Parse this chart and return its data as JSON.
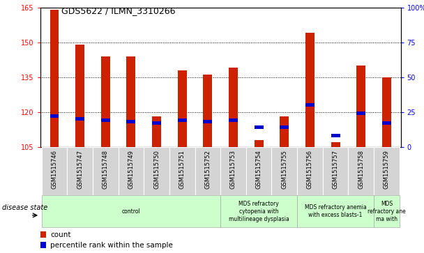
{
  "title": "GDS5622 / ILMN_3310266",
  "samples": [
    "GSM1515746",
    "GSM1515747",
    "GSM1515748",
    "GSM1515749",
    "GSM1515750",
    "GSM1515751",
    "GSM1515752",
    "GSM1515753",
    "GSM1515754",
    "GSM1515755",
    "GSM1515756",
    "GSM1515757",
    "GSM1515758",
    "GSM1515759"
  ],
  "count_values": [
    164,
    149,
    144,
    144,
    118,
    138,
    136,
    139,
    108,
    118,
    154,
    107,
    140,
    135
  ],
  "percentile_values": [
    22,
    20,
    19,
    18,
    17,
    19,
    18,
    19,
    14,
    14,
    30,
    8,
    24,
    17
  ],
  "baseline": 105,
  "ylim_left": [
    105,
    165
  ],
  "ylim_right": [
    0,
    100
  ],
  "yticks_left": [
    105,
    120,
    135,
    150,
    165
  ],
  "yticks_right": [
    0,
    25,
    50,
    75,
    100
  ],
  "bar_color": "#cc2200",
  "blue_color": "#0000cc",
  "bg_color": "#ffffff",
  "label_bg": "#d4d4d4",
  "group_bg": "#ccffcc",
  "legend_count_label": "count",
  "legend_pct_label": "percentile rank within the sample",
  "disease_state_label": "disease state",
  "groups": [
    {
      "label": "control",
      "start": 0,
      "end": 7
    },
    {
      "label": "MDS refractory\ncytopenia with\nmultilineage dysplasia",
      "start": 7,
      "end": 10
    },
    {
      "label": "MDS refractory anemia\nwith excess blasts-1",
      "start": 10,
      "end": 13
    },
    {
      "label": "MDS\nrefractory ane\nma with",
      "start": 13,
      "end": 14
    }
  ]
}
